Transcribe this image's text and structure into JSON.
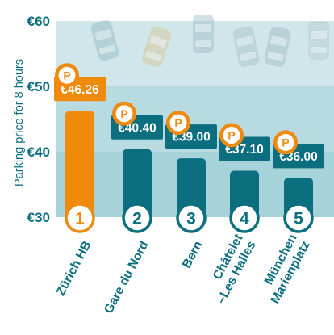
{
  "chart_data": {
    "type": "bar",
    "ylabel": "Parking price for 8 hours",
    "ylim": [
      30,
      60
    ],
    "ytick_values": [
      30,
      40,
      50,
      60
    ],
    "ytick_labels": [
      "€30",
      "€40",
      "€50",
      "€60"
    ],
    "categories": [
      "Zürich HB",
      "Gare du Nord",
      "Bern",
      "Châtelet\n–Les Halles",
      "München\nMarienplatz"
    ],
    "values": [
      46.26,
      40.4,
      39.0,
      37.1,
      36.0
    ],
    "value_labels": [
      "€46.26",
      "€40.40",
      "€39.00",
      "€37.10",
      "€36.00"
    ],
    "ranks": [
      "1",
      "2",
      "3",
      "4",
      "5"
    ],
    "badge_letter": "P",
    "legend": "none",
    "grid": false
  },
  "colors": {
    "highlight": "#ef8a0c",
    "bar": "#0b6f80",
    "band_top": "#d0e6ea",
    "band_mid": "#b8dbe1",
    "band_low": "#a6d2da",
    "text": "#0b6f80"
  },
  "icons": {
    "badge": "parking-p-icon",
    "background": "parked-car-icons"
  }
}
